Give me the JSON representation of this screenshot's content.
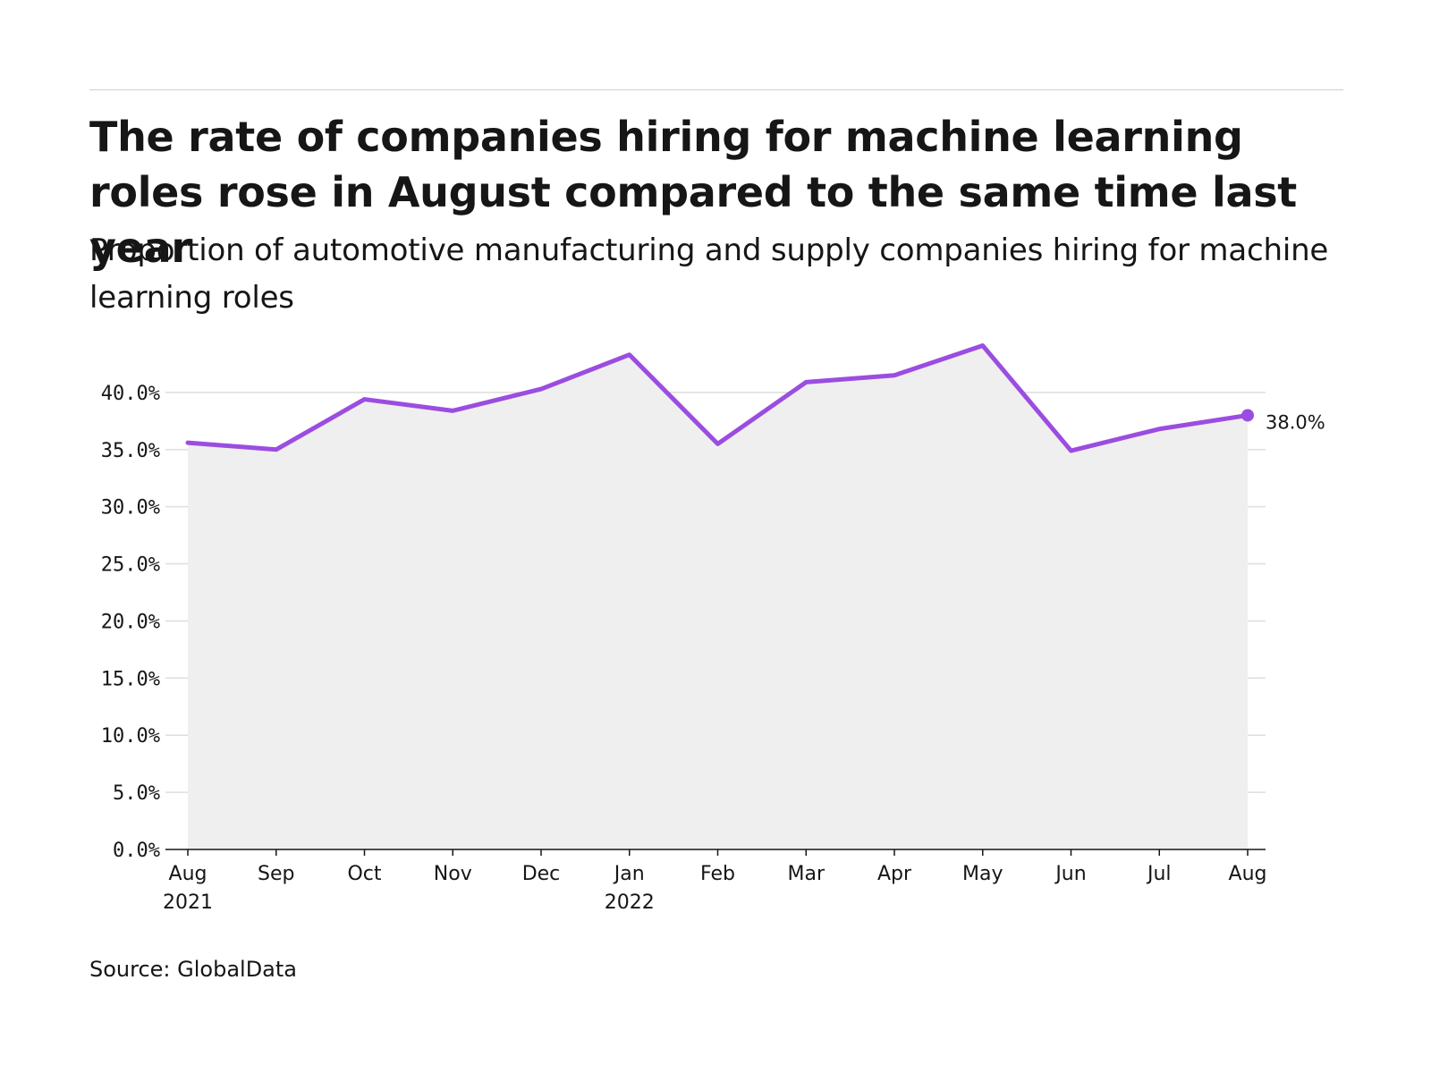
{
  "header": {
    "title": "The rate of companies hiring for machine learning roles rose in August compared to the same time last year",
    "subtitle": "Proportion of automotive manufacturing and supply companies hiring for machine learning roles"
  },
  "footer": {
    "source": "Source: GlobalData"
  },
  "colors": {
    "line": "#9b4de0",
    "area": "#efefef",
    "grid": "#dedede",
    "axis": "#161616"
  },
  "chart_data": {
    "type": "line",
    "title": "The rate of companies hiring for machine learning roles rose in August compared to the same time last year",
    "subtitle": "Proportion of automotive manufacturing and supply companies hiring for machine learning roles",
    "x": [
      "Aug 2021",
      "Sep 2021",
      "Oct 2021",
      "Nov 2021",
      "Dec 2021",
      "Jan 2022",
      "Feb 2022",
      "Mar 2022",
      "Apr 2022",
      "May 2022",
      "Jun 2022",
      "Jul 2022",
      "Aug 2022"
    ],
    "x_tick_labels": [
      {
        "month": "Aug",
        "year": "2021"
      },
      {
        "month": "Sep",
        "year": ""
      },
      {
        "month": "Oct",
        "year": ""
      },
      {
        "month": "Nov",
        "year": ""
      },
      {
        "month": "Dec",
        "year": ""
      },
      {
        "month": "Jan",
        "year": "2022"
      },
      {
        "month": "Feb",
        "year": ""
      },
      {
        "month": "Mar",
        "year": ""
      },
      {
        "month": "Apr",
        "year": ""
      },
      {
        "month": "May",
        "year": ""
      },
      {
        "month": "Jun",
        "year": ""
      },
      {
        "month": "Jul",
        "year": ""
      },
      {
        "month": "Aug",
        "year": ""
      }
    ],
    "series": [
      {
        "values": [
          35.6,
          35.0,
          39.4,
          38.4,
          40.3,
          43.3,
          35.5,
          40.9,
          41.5,
          44.1,
          34.9,
          36.8,
          38.0
        ]
      }
    ],
    "y_ticks": [
      0,
      5,
      10,
      15,
      20,
      25,
      30,
      35,
      40
    ],
    "y_tick_labels": [
      "0.0%",
      "5.0%",
      "10.0%",
      "15.0%",
      "20.0%",
      "25.0%",
      "30.0%",
      "35.0%",
      "40.0%"
    ],
    "ylim": [
      0,
      45
    ],
    "end_label": "38.0%",
    "xlabel": "",
    "ylabel": "",
    "grid": true,
    "area_fill": true,
    "legend": "none"
  }
}
